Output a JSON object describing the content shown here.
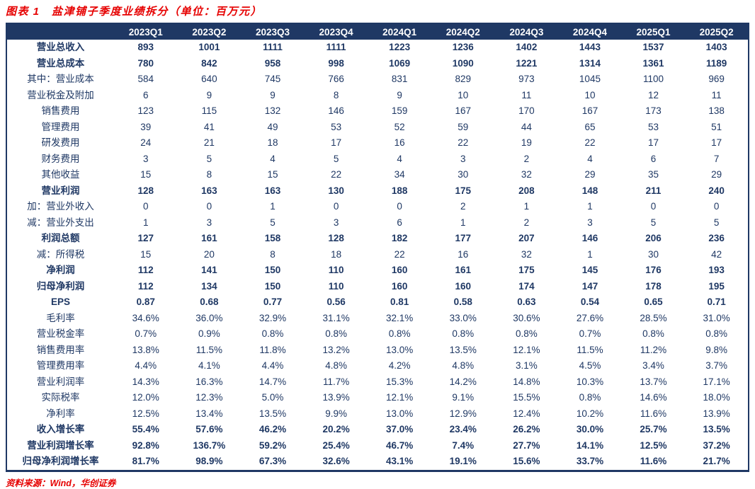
{
  "colors": {
    "header_bg": "#1f3864",
    "body_text": "#1f3864",
    "accent_red": "#e60000",
    "table_border": "#1f3864"
  },
  "title": "图表 1　盐津铺子季度业绩拆分（单位：百万元）",
  "source": "资料来源：Wind，华创证券",
  "chart_data": {
    "type": "table",
    "title": "盐津铺子季度业绩拆分（单位：百万元）",
    "categories": [
      "2023Q1",
      "2023Q2",
      "2023Q3",
      "2023Q4",
      "2024Q1",
      "2024Q2",
      "2024Q3",
      "2024Q4",
      "2025Q1",
      "2025Q2"
    ],
    "rows": [
      {
        "label": "营业总收入",
        "bold": true,
        "values": [
          "893",
          "1001",
          "1111",
          "1111",
          "1223",
          "1236",
          "1402",
          "1443",
          "1537",
          "1403"
        ]
      },
      {
        "label": "营业总成本",
        "bold": true,
        "values": [
          "780",
          "842",
          "958",
          "998",
          "1069",
          "1090",
          "1221",
          "1314",
          "1361",
          "1189"
        ]
      },
      {
        "label": "其中：营业成本",
        "bold": false,
        "values": [
          "584",
          "640",
          "745",
          "766",
          "831",
          "829",
          "973",
          "1045",
          "1100",
          "969"
        ]
      },
      {
        "label": "营业税金及附加",
        "bold": false,
        "values": [
          "6",
          "9",
          "9",
          "8",
          "9",
          "10",
          "11",
          "10",
          "12",
          "11"
        ]
      },
      {
        "label": "销售费用",
        "bold": false,
        "values": [
          "123",
          "115",
          "132",
          "146",
          "159",
          "167",
          "170",
          "167",
          "173",
          "138"
        ]
      },
      {
        "label": "管理费用",
        "bold": false,
        "values": [
          "39",
          "41",
          "49",
          "53",
          "52",
          "59",
          "44",
          "65",
          "53",
          "51"
        ]
      },
      {
        "label": "研发费用",
        "bold": false,
        "values": [
          "24",
          "21",
          "18",
          "17",
          "16",
          "22",
          "19",
          "22",
          "17",
          "17"
        ]
      },
      {
        "label": "财务费用",
        "bold": false,
        "values": [
          "3",
          "5",
          "4",
          "5",
          "4",
          "3",
          "2",
          "4",
          "6",
          "7"
        ]
      },
      {
        "label": "其他收益",
        "bold": false,
        "values": [
          "15",
          "8",
          "15",
          "22",
          "34",
          "30",
          "32",
          "29",
          "35",
          "29"
        ]
      },
      {
        "label": "营业利润",
        "bold": true,
        "values": [
          "128",
          "163",
          "163",
          "130",
          "188",
          "175",
          "208",
          "148",
          "211",
          "240"
        ]
      },
      {
        "label": "加：营业外收入",
        "bold": false,
        "values": [
          "0",
          "0",
          "1",
          "0",
          "0",
          "2",
          "1",
          "1",
          "0",
          "0"
        ]
      },
      {
        "label": "减：营业外支出",
        "bold": false,
        "values": [
          "1",
          "3",
          "5",
          "3",
          "6",
          "1",
          "2",
          "3",
          "5",
          "5"
        ]
      },
      {
        "label": "利润总额",
        "bold": true,
        "values": [
          "127",
          "161",
          "158",
          "128",
          "182",
          "177",
          "207",
          "146",
          "206",
          "236"
        ]
      },
      {
        "label": "减：所得税",
        "bold": false,
        "values": [
          "15",
          "20",
          "8",
          "18",
          "22",
          "16",
          "32",
          "1",
          "30",
          "42"
        ]
      },
      {
        "label": "净利润",
        "bold": true,
        "values": [
          "112",
          "141",
          "150",
          "110",
          "160",
          "161",
          "175",
          "145",
          "176",
          "193"
        ]
      },
      {
        "label": "归母净利润",
        "bold": true,
        "values": [
          "112",
          "134",
          "150",
          "110",
          "160",
          "160",
          "174",
          "147",
          "178",
          "195"
        ]
      },
      {
        "label": "EPS",
        "bold": true,
        "values": [
          "0.87",
          "0.68",
          "0.77",
          "0.56",
          "0.81",
          "0.58",
          "0.63",
          "0.54",
          "0.65",
          "0.71"
        ]
      },
      {
        "label": "毛利率",
        "bold": false,
        "values": [
          "34.6%",
          "36.0%",
          "32.9%",
          "31.1%",
          "32.1%",
          "33.0%",
          "30.6%",
          "27.6%",
          "28.5%",
          "31.0%"
        ]
      },
      {
        "label": "营业税金率",
        "bold": false,
        "values": [
          "0.7%",
          "0.9%",
          "0.8%",
          "0.8%",
          "0.8%",
          "0.8%",
          "0.8%",
          "0.7%",
          "0.8%",
          "0.8%"
        ]
      },
      {
        "label": "销售费用率",
        "bold": false,
        "values": [
          "13.8%",
          "11.5%",
          "11.8%",
          "13.2%",
          "13.0%",
          "13.5%",
          "12.1%",
          "11.5%",
          "11.2%",
          "9.8%"
        ]
      },
      {
        "label": "管理费用率",
        "bold": false,
        "values": [
          "4.4%",
          "4.1%",
          "4.4%",
          "4.8%",
          "4.2%",
          "4.8%",
          "3.1%",
          "4.5%",
          "3.4%",
          "3.7%"
        ]
      },
      {
        "label": "营业利润率",
        "bold": false,
        "values": [
          "14.3%",
          "16.3%",
          "14.7%",
          "11.7%",
          "15.3%",
          "14.2%",
          "14.8%",
          "10.3%",
          "13.7%",
          "17.1%"
        ]
      },
      {
        "label": "实际税率",
        "bold": false,
        "values": [
          "12.0%",
          "12.3%",
          "5.0%",
          "13.9%",
          "12.1%",
          "9.1%",
          "15.5%",
          "0.8%",
          "14.6%",
          "18.0%"
        ]
      },
      {
        "label": "净利率",
        "bold": false,
        "values": [
          "12.5%",
          "13.4%",
          "13.5%",
          "9.9%",
          "13.0%",
          "12.9%",
          "12.4%",
          "10.2%",
          "11.6%",
          "13.9%"
        ]
      },
      {
        "label": "收入增长率",
        "bold": true,
        "values": [
          "55.4%",
          "57.6%",
          "46.2%",
          "20.2%",
          "37.0%",
          "23.4%",
          "26.2%",
          "30.0%",
          "25.7%",
          "13.5%"
        ]
      },
      {
        "label": "营业利润增长率",
        "bold": true,
        "values": [
          "92.8%",
          "136.7%",
          "59.2%",
          "25.4%",
          "46.7%",
          "7.4%",
          "27.7%",
          "14.1%",
          "12.5%",
          "37.2%"
        ]
      },
      {
        "label": "归母净利润增长率",
        "bold": true,
        "values": [
          "81.7%",
          "98.9%",
          "67.3%",
          "32.6%",
          "43.1%",
          "19.1%",
          "15.6%",
          "33.7%",
          "11.6%",
          "21.7%"
        ]
      }
    ]
  }
}
